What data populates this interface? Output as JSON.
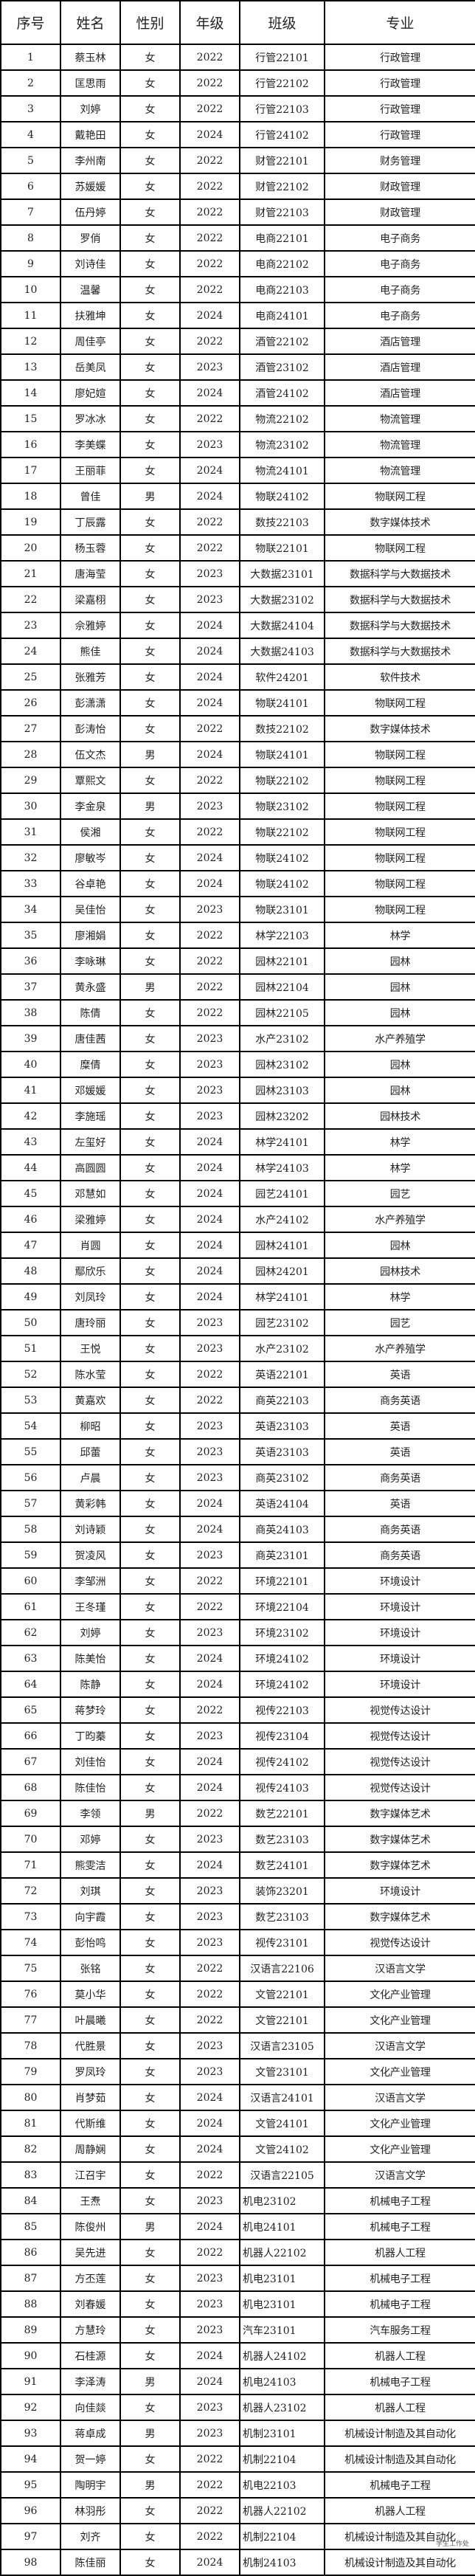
{
  "headers": [
    "序号",
    "姓名",
    "性别",
    "年级",
    "班级",
    "专业"
  ],
  "watermark": "学生工作处",
  "rows": [
    [
      "1",
      "蔡玉林",
      "女",
      "2022",
      "行管22101",
      "行政管理"
    ],
    [
      "2",
      "匡思雨",
      "女",
      "2022",
      "行管22102",
      "行政管理"
    ],
    [
      "3",
      "刘婷",
      "女",
      "2022",
      "行管22103",
      "行政管理"
    ],
    [
      "4",
      "戴艳田",
      "女",
      "2024",
      "行管24102",
      "行政管理"
    ],
    [
      "5",
      "李州南",
      "女",
      "2022",
      "财管22101",
      "财务管理"
    ],
    [
      "6",
      "苏媛媛",
      "女",
      "2022",
      "财管22102",
      "财政管理"
    ],
    [
      "7",
      "伍丹婷",
      "女",
      "2022",
      "财管22103",
      "财政管理"
    ],
    [
      "8",
      "罗俏",
      "女",
      "2022",
      "电商22101",
      "电子商务"
    ],
    [
      "9",
      "刘诗佳",
      "女",
      "2022",
      "电商22102",
      "电子商务"
    ],
    [
      "10",
      "温馨",
      "女",
      "2022",
      "电商22103",
      "电子商务"
    ],
    [
      "11",
      "扶雅坤",
      "女",
      "2024",
      "电商24101",
      "电子商务"
    ],
    [
      "12",
      "周佳亭",
      "女",
      "2022",
      "酒管22102",
      "酒店管理"
    ],
    [
      "13",
      "岳美凤",
      "女",
      "2023",
      "酒管23102",
      "酒店管理"
    ],
    [
      "14",
      "廖妃媗",
      "女",
      "2024",
      "酒管24102",
      "酒店管理"
    ],
    [
      "15",
      "罗冰冰",
      "女",
      "2022",
      "物流22102",
      "物流管理"
    ],
    [
      "16",
      "李美蝶",
      "女",
      "2023",
      "物流23102",
      "物流管理"
    ],
    [
      "17",
      "王丽菲",
      "女",
      "2024",
      "物流24101",
      "物流管理"
    ],
    [
      "18",
      "曾佳",
      "男",
      "2024",
      "物联24102",
      "物联网工程"
    ],
    [
      "19",
      "丁辰露",
      "女",
      "2022",
      "数技22103",
      "数字媒体技术"
    ],
    [
      "20",
      "杨玉蓉",
      "女",
      "2022",
      "物联22101",
      "物联网工程"
    ],
    [
      "21",
      "唐海莹",
      "女",
      "2023",
      "大数据23101",
      "数据科学与大数据技术"
    ],
    [
      "22",
      "梁嘉栩",
      "女",
      "2023",
      "大数据23102",
      "数据科学与大数据技术"
    ],
    [
      "23",
      "佘雅婷",
      "女",
      "2024",
      "大数据24104",
      "数据科学与大数据技术"
    ],
    [
      "24",
      "熊佳",
      "女",
      "2024",
      "大数据24103",
      "数据科学与大数据技术"
    ],
    [
      "25",
      "张雅芳",
      "女",
      "2024",
      "软件24201",
      "软件技术"
    ],
    [
      "26",
      "彭潇潇",
      "女",
      "2024",
      "物联24101",
      "物联网工程"
    ],
    [
      "27",
      "彭涛怡",
      "女",
      "2022",
      "数技22102",
      "数字媒体技术"
    ],
    [
      "28",
      "伍文杰",
      "男",
      "2024",
      "物联24101",
      "物联网工程"
    ],
    [
      "29",
      "覃熙文",
      "女",
      "2022",
      "物联22102",
      "物联网工程"
    ],
    [
      "30",
      "李金泉",
      "男",
      "2023",
      "物联23102",
      "物联网工程"
    ],
    [
      "31",
      "侯湘",
      "女",
      "2022",
      "物联22102",
      "物联网工程"
    ],
    [
      "32",
      "廖敏岑",
      "女",
      "2024",
      "物联24102",
      "物联网工程"
    ],
    [
      "33",
      "谷卓艳",
      "女",
      "2024",
      "物联24102",
      "物联网工程"
    ],
    [
      "34",
      "吴佳怡",
      "女",
      "2023",
      "物联23101",
      "物联网工程"
    ],
    [
      "35",
      "廖湘娟",
      "女",
      "2022",
      "林学22103",
      "林学"
    ],
    [
      "36",
      "李咏琳",
      "女",
      "2022",
      "园林22101",
      "园林"
    ],
    [
      "37",
      "黄永盛",
      "男",
      "2022",
      "园林22104",
      "园林"
    ],
    [
      "38",
      "陈倩",
      "女",
      "2022",
      "园林22105",
      "园林"
    ],
    [
      "39",
      "唐佳茜",
      "女",
      "2023",
      "水产23102",
      "水产养殖学"
    ],
    [
      "40",
      "糜倩",
      "女",
      "2023",
      "园林23102",
      "园林"
    ],
    [
      "41",
      "邓媛媛",
      "女",
      "2023",
      "园林23103",
      "园林"
    ],
    [
      "42",
      "李施瑶",
      "女",
      "2023",
      "园林23202",
      "园林技术"
    ],
    [
      "43",
      "左玺好",
      "女",
      "2024",
      "林学24101",
      "林学"
    ],
    [
      "44",
      "高圆圆",
      "女",
      "2024",
      "林学24103",
      "林学"
    ],
    [
      "45",
      "邓慧如",
      "女",
      "2024",
      "园艺24101",
      "园艺"
    ],
    [
      "46",
      "梁雅婷",
      "女",
      "2024",
      "水产24102",
      "水产养殖学"
    ],
    [
      "47",
      "肖圆",
      "女",
      "2024",
      "园林24101",
      "园林"
    ],
    [
      "48",
      "鄢欣乐",
      "女",
      "2024",
      "园林24201",
      "园林技术"
    ],
    [
      "49",
      "刘凤玲",
      "女",
      "2024",
      "林学24101",
      "林学"
    ],
    [
      "50",
      "唐玲丽",
      "女",
      "2023",
      "园艺23102",
      "园艺"
    ],
    [
      "51",
      "王悦",
      "女",
      "2023",
      "水产23102",
      "水产养殖学"
    ],
    [
      "52",
      "陈水莹",
      "女",
      "2022",
      "英语22101",
      "英语"
    ],
    [
      "53",
      "黄嘉欢",
      "女",
      "2022",
      "商英22103",
      "商务英语"
    ],
    [
      "54",
      "柳昭",
      "女",
      "2023",
      "英语23103",
      "英语"
    ],
    [
      "55",
      "邱蕾",
      "女",
      "2023",
      "英语23103",
      "英语"
    ],
    [
      "56",
      "卢晨",
      "女",
      "2023",
      "商英23102",
      "商务英语"
    ],
    [
      "57",
      "黄彩韩",
      "女",
      "2024",
      "英语24104",
      "英语"
    ],
    [
      "58",
      "刘诗颖",
      "女",
      "2024",
      "商英24103",
      "商务英语"
    ],
    [
      "59",
      "贺凌风",
      "女",
      "2023",
      "商英23101",
      "商务英语"
    ],
    [
      "60",
      "李邹洲",
      "女",
      "2022",
      "环境22101",
      "环境设计"
    ],
    [
      "61",
      "王冬瑾",
      "女",
      "2022",
      "环境22104",
      "环境设计"
    ],
    [
      "62",
      "刘婷",
      "女",
      "2023",
      "环境23102",
      "环境设计"
    ],
    [
      "63",
      "陈美怡",
      "女",
      "2024",
      "环境24102",
      "环境设计"
    ],
    [
      "64",
      "陈静",
      "女",
      "2024",
      "环境24102",
      "环境设计"
    ],
    [
      "65",
      "蒋梦玲",
      "女",
      "2022",
      "视传22103",
      "视觉传达设计"
    ],
    [
      "66",
      "丁昀蓁",
      "女",
      "2023",
      "视传23104",
      "视觉传达设计"
    ],
    [
      "67",
      "刘佳怡",
      "女",
      "2024",
      "视传24102",
      "视觉传达设计"
    ],
    [
      "68",
      "陈佳怡",
      "女",
      "2024",
      "视传24103",
      "视觉传达设计"
    ],
    [
      "69",
      "李领",
      "男",
      "2022",
      "数艺22101",
      "数字媒体艺术"
    ],
    [
      "70",
      "邓婷",
      "女",
      "2023",
      "数艺23103",
      "数字媒体艺术"
    ],
    [
      "71",
      "熊雯洁",
      "女",
      "2024",
      "数艺24101",
      "数字媒体艺术"
    ],
    [
      "72",
      "刘琪",
      "女",
      "2023",
      "装饰23201",
      "环境设计"
    ],
    [
      "73",
      "向宇霞",
      "女",
      "2023",
      "数艺23103",
      "数字媒体艺术"
    ],
    [
      "74",
      "彭怡鸣",
      "女",
      "2023",
      "视传23101",
      "视觉传达设计"
    ],
    [
      "75",
      "张铭",
      "女",
      "2022",
      "汉语言22106",
      "汉语言文学"
    ],
    [
      "76",
      "莫小华",
      "女",
      "2022",
      "文管22101",
      "文化产业管理"
    ],
    [
      "77",
      "叶晨曦",
      "女",
      "2022",
      "文管22101",
      "文化产业管理"
    ],
    [
      "78",
      "代胜景",
      "女",
      "2023",
      "汉语言23105",
      "汉语言文学"
    ],
    [
      "79",
      "罗凤玲",
      "女",
      "2023",
      "文管23101",
      "文化产业管理"
    ],
    [
      "80",
      "肖梦茹",
      "女",
      "2024",
      "汉语言24101",
      "汉语言文学"
    ],
    [
      "81",
      "代斯维",
      "女",
      "2024",
      "文管24101",
      "文化产业管理"
    ],
    [
      "82",
      "周静娴",
      "女",
      "2024",
      "文管24102",
      "文化产业管理"
    ],
    [
      "83",
      "江召宇",
      "女",
      "2022",
      "汉语言22105",
      "汉语言文学"
    ],
    [
      "84",
      "王焘",
      "女",
      "2023",
      "机电23102",
      "机械电子工程"
    ],
    [
      "85",
      "陈俊州",
      "男",
      "2024",
      "机电24101",
      "机械电子工程"
    ],
    [
      "86",
      "吴先进",
      "女",
      "2022",
      "机器人22102",
      "机器人工程"
    ],
    [
      "87",
      "方丕莲",
      "女",
      "2023",
      "机电23101",
      "机械电子工程"
    ],
    [
      "88",
      "刘春媛",
      "女",
      "2023",
      "机电23101",
      "机械电子工程"
    ],
    [
      "89",
      "方慧玲",
      "女",
      "2023",
      "汽车23101",
      "汽车服务工程"
    ],
    [
      "90",
      "石桂源",
      "女",
      "2024",
      "机器人24102",
      "机器人工程"
    ],
    [
      "91",
      "李泽涛",
      "男",
      "2024",
      "机电24103",
      "机械电子工程"
    ],
    [
      "92",
      "向佳燚",
      "女",
      "2023",
      "机器人23102",
      "机器人工程"
    ],
    [
      "93",
      "蒋卓成",
      "男",
      "2023",
      "机制23101",
      "机械设计制造及其自动化"
    ],
    [
      "94",
      "贺一婷",
      "女",
      "2022",
      "机制22104",
      "机械设计制造及其自动化"
    ],
    [
      "95",
      "陶明宇",
      "男",
      "2022",
      "机电22103",
      "机械电子工程"
    ],
    [
      "96",
      "林羽彤",
      "女",
      "2022",
      "机器人22102",
      "机器人工程"
    ],
    [
      "97",
      "刘齐",
      "女",
      "2022",
      "机制22104",
      "机械设计制造及其自动化"
    ],
    [
      "98",
      "陈佳丽",
      "女",
      "2024",
      "机制24103",
      "机械设计制造及其自动化"
    ]
  ]
}
